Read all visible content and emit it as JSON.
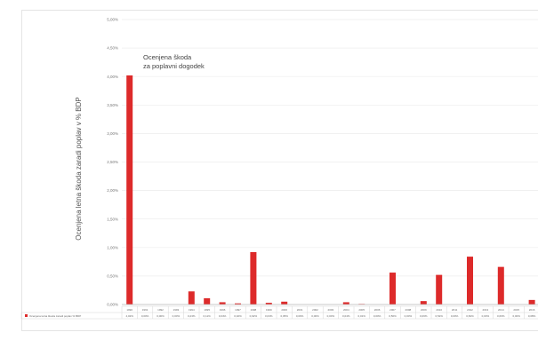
{
  "chart_data": {
    "type": "bar",
    "ylabel": "Ocenjena letna škoda zaradi poplav v % BDP",
    "annotation": [
      "Ocenjena škoda",
      "za poplavni dogodek"
    ],
    "legend_label": "Ocenjena letna škoda zaradi poplav % BDP",
    "ylim": [
      0,
      5
    ],
    "y_ticks": [
      "5,00%",
      "4,50%",
      "4,00%",
      "3,50%",
      "3,00%",
      "2,50%",
      "2,00%",
      "1,50%",
      "1,00%",
      "0,50%",
      "0,00%"
    ],
    "grid": true,
    "series_color": "#dd2a2a",
    "categories": [
      "1990",
      "1991",
      "1992",
      "1993",
      "1994",
      "1995",
      "1996",
      "1997",
      "1998",
      "1999",
      "2000",
      "2001",
      "2002",
      "2003",
      "2004",
      "2005",
      "2006",
      "2007",
      "2008",
      "2009",
      "2010",
      "2011",
      "2012",
      "2013",
      "2014",
      "2015",
      "2016"
    ],
    "values": [
      4.02,
      0.0,
      0.0,
      0.0,
      0.23,
      0.11,
      0.04,
      0.02,
      0.92,
      0.03,
      0.05,
      0.0,
      0.0,
      0.0,
      0.04,
      0.01,
      0.0,
      0.56,
      0.0,
      0.06,
      0.52,
      0.0,
      0.84,
      0.0,
      0.66,
      0.0,
      0.08
    ],
    "cut_off_value": 0.3,
    "value_labels": [
      "4,02%",
      "0,00%",
      "0,00%",
      "0,00%",
      "0,23%",
      "0,11%",
      "0,04%",
      "0,02%",
      "0,92%",
      "0,03%",
      "0,05%",
      "0,00%",
      "0,00%",
      "0,00%",
      "0,04%",
      "0,01%",
      "0,00%",
      "0,56%",
      "0,00%",
      "0,06%",
      "0,52%",
      "0,00%",
      "0,84%",
      "0,00%",
      "0,66%",
      "0,00%",
      "0,08%"
    ]
  }
}
